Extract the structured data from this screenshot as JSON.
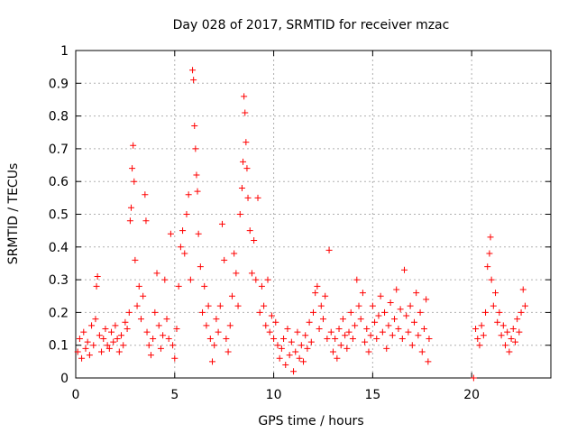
{
  "colors": {
    "marker": "#ff0000",
    "axis": "#000000",
    "grid": "#b0b0b0"
  },
  "chart_data": {
    "type": "scatter",
    "title": "Day 028 of 2017, SRMTID for receiver mzac",
    "xlabel": "GPS time / hours",
    "ylabel": "SRMTID / TECUs",
    "xlim": [
      0,
      24
    ],
    "ylim": [
      0,
      1
    ],
    "xticks": [
      0,
      5,
      10,
      15,
      20
    ],
    "yticks": [
      0,
      0.1,
      0.2,
      0.3,
      0.4,
      0.5,
      0.6,
      0.7,
      0.8,
      0.9,
      1
    ],
    "grid": true,
    "marker": "plus",
    "series": [
      {
        "name": "mzac",
        "points": [
          [
            0.1,
            0.08
          ],
          [
            0.2,
            0.12
          ],
          [
            0.3,
            0.06
          ],
          [
            0.4,
            0.14
          ],
          [
            0.5,
            0.09
          ],
          [
            0.6,
            0.11
          ],
          [
            0.7,
            0.07
          ],
          [
            0.8,
            0.16
          ],
          [
            0.9,
            0.1
          ],
          [
            1.0,
            0.18
          ],
          [
            1.05,
            0.28
          ],
          [
            1.1,
            0.31
          ],
          [
            1.2,
            0.13
          ],
          [
            1.3,
            0.08
          ],
          [
            1.4,
            0.12
          ],
          [
            1.5,
            0.15
          ],
          [
            1.6,
            0.1
          ],
          [
            1.7,
            0.09
          ],
          [
            1.8,
            0.14
          ],
          [
            1.9,
            0.11
          ],
          [
            2.0,
            0.16
          ],
          [
            2.1,
            0.12
          ],
          [
            2.2,
            0.08
          ],
          [
            2.3,
            0.13
          ],
          [
            2.4,
            0.1
          ],
          [
            2.5,
            0.17
          ],
          [
            2.6,
            0.15
          ],
          [
            2.7,
            0.2
          ],
          [
            2.75,
            0.48
          ],
          [
            2.8,
            0.52
          ],
          [
            2.85,
            0.64
          ],
          [
            2.9,
            0.71
          ],
          [
            2.95,
            0.6
          ],
          [
            3.0,
            0.36
          ],
          [
            3.1,
            0.22
          ],
          [
            3.2,
            0.28
          ],
          [
            3.3,
            0.18
          ],
          [
            3.4,
            0.25
          ],
          [
            3.5,
            0.56
          ],
          [
            3.55,
            0.48
          ],
          [
            3.6,
            0.14
          ],
          [
            3.7,
            0.1
          ],
          [
            3.8,
            0.07
          ],
          [
            3.9,
            0.12
          ],
          [
            4.0,
            0.2
          ],
          [
            4.1,
            0.32
          ],
          [
            4.2,
            0.16
          ],
          [
            4.3,
            0.09
          ],
          [
            4.4,
            0.13
          ],
          [
            4.5,
            0.3
          ],
          [
            4.6,
            0.18
          ],
          [
            4.7,
            0.12
          ],
          [
            4.8,
            0.44
          ],
          [
            4.9,
            0.1
          ],
          [
            5.0,
            0.06
          ],
          [
            5.1,
            0.15
          ],
          [
            5.2,
            0.28
          ],
          [
            5.3,
            0.4
          ],
          [
            5.4,
            0.45
          ],
          [
            5.5,
            0.38
          ],
          [
            5.6,
            0.5
          ],
          [
            5.7,
            0.56
          ],
          [
            5.8,
            0.3
          ],
          [
            5.9,
            0.94
          ],
          [
            5.95,
            0.91
          ],
          [
            6.0,
            0.77
          ],
          [
            6.05,
            0.7
          ],
          [
            6.1,
            0.62
          ],
          [
            6.15,
            0.57
          ],
          [
            6.2,
            0.44
          ],
          [
            6.3,
            0.34
          ],
          [
            6.4,
            0.2
          ],
          [
            6.5,
            0.28
          ],
          [
            6.6,
            0.16
          ],
          [
            6.7,
            0.22
          ],
          [
            6.8,
            0.12
          ],
          [
            6.9,
            0.05
          ],
          [
            7.0,
            0.1
          ],
          [
            7.1,
            0.18
          ],
          [
            7.2,
            0.14
          ],
          [
            7.3,
            0.22
          ],
          [
            7.4,
            0.47
          ],
          [
            7.5,
            0.36
          ],
          [
            7.6,
            0.12
          ],
          [
            7.7,
            0.08
          ],
          [
            7.8,
            0.16
          ],
          [
            7.9,
            0.25
          ],
          [
            8.0,
            0.38
          ],
          [
            8.1,
            0.32
          ],
          [
            8.2,
            0.22
          ],
          [
            8.3,
            0.5
          ],
          [
            8.4,
            0.58
          ],
          [
            8.45,
            0.66
          ],
          [
            8.5,
            0.86
          ],
          [
            8.55,
            0.81
          ],
          [
            8.6,
            0.72
          ],
          [
            8.65,
            0.64
          ],
          [
            8.7,
            0.55
          ],
          [
            8.8,
            0.45
          ],
          [
            8.9,
            0.32
          ],
          [
            9.0,
            0.42
          ],
          [
            9.1,
            0.3
          ],
          [
            9.2,
            0.55
          ],
          [
            9.3,
            0.2
          ],
          [
            9.4,
            0.28
          ],
          [
            9.5,
            0.22
          ],
          [
            9.6,
            0.16
          ],
          [
            9.7,
            0.3
          ],
          [
            9.8,
            0.14
          ],
          [
            9.9,
            0.19
          ],
          [
            10.0,
            0.12
          ],
          [
            10.1,
            0.17
          ],
          [
            10.2,
            0.1
          ],
          [
            10.3,
            0.06
          ],
          [
            10.4,
            0.09
          ],
          [
            10.5,
            0.12
          ],
          [
            10.6,
            0.04
          ],
          [
            10.7,
            0.15
          ],
          [
            10.8,
            0.07
          ],
          [
            10.9,
            0.11
          ],
          [
            11.0,
            0.02
          ],
          [
            11.1,
            0.08
          ],
          [
            11.2,
            0.14
          ],
          [
            11.3,
            0.06
          ],
          [
            11.4,
            0.1
          ],
          [
            11.5,
            0.05
          ],
          [
            11.6,
            0.13
          ],
          [
            11.7,
            0.09
          ],
          [
            11.8,
            0.17
          ],
          [
            11.9,
            0.11
          ],
          [
            12.0,
            0.2
          ],
          [
            12.1,
            0.26
          ],
          [
            12.2,
            0.28
          ],
          [
            12.3,
            0.15
          ],
          [
            12.4,
            0.22
          ],
          [
            12.5,
            0.18
          ],
          [
            12.6,
            0.25
          ],
          [
            12.7,
            0.12
          ],
          [
            12.8,
            0.39
          ],
          [
            12.9,
            0.14
          ],
          [
            13.0,
            0.08
          ],
          [
            13.1,
            0.12
          ],
          [
            13.2,
            0.06
          ],
          [
            13.3,
            0.15
          ],
          [
            13.4,
            0.1
          ],
          [
            13.5,
            0.18
          ],
          [
            13.6,
            0.13
          ],
          [
            13.7,
            0.09
          ],
          [
            13.8,
            0.14
          ],
          [
            13.9,
            0.2
          ],
          [
            14.0,
            0.12
          ],
          [
            14.1,
            0.16
          ],
          [
            14.2,
            0.3
          ],
          [
            14.3,
            0.22
          ],
          [
            14.4,
            0.18
          ],
          [
            14.5,
            0.26
          ],
          [
            14.6,
            0.11
          ],
          [
            14.7,
            0.15
          ],
          [
            14.8,
            0.08
          ],
          [
            14.9,
            0.13
          ],
          [
            15.0,
            0.22
          ],
          [
            15.1,
            0.17
          ],
          [
            15.2,
            0.12
          ],
          [
            15.3,
            0.19
          ],
          [
            15.4,
            0.25
          ],
          [
            15.5,
            0.14
          ],
          [
            15.6,
            0.2
          ],
          [
            15.7,
            0.09
          ],
          [
            15.8,
            0.16
          ],
          [
            15.9,
            0.23
          ],
          [
            16.0,
            0.13
          ],
          [
            16.1,
            0.18
          ],
          [
            16.2,
            0.27
          ],
          [
            16.3,
            0.15
          ],
          [
            16.4,
            0.21
          ],
          [
            16.5,
            0.12
          ],
          [
            16.6,
            0.33
          ],
          [
            16.7,
            0.19
          ],
          [
            16.8,
            0.14
          ],
          [
            16.9,
            0.22
          ],
          [
            17.0,
            0.1
          ],
          [
            17.1,
            0.17
          ],
          [
            17.2,
            0.26
          ],
          [
            17.3,
            0.13
          ],
          [
            17.4,
            0.2
          ],
          [
            17.5,
            0.08
          ],
          [
            17.6,
            0.15
          ],
          [
            17.7,
            0.24
          ],
          [
            17.8,
            0.05
          ],
          [
            17.85,
            0.12
          ],
          [
            20.1,
            0.0
          ],
          [
            20.2,
            0.15
          ],
          [
            20.3,
            0.12
          ],
          [
            20.4,
            0.1
          ],
          [
            20.5,
            0.16
          ],
          [
            20.6,
            0.13
          ],
          [
            20.7,
            0.2
          ],
          [
            20.8,
            0.34
          ],
          [
            20.9,
            0.38
          ],
          [
            20.95,
            0.43
          ],
          [
            21.0,
            0.3
          ],
          [
            21.1,
            0.22
          ],
          [
            21.2,
            0.26
          ],
          [
            21.3,
            0.17
          ],
          [
            21.4,
            0.2
          ],
          [
            21.5,
            0.13
          ],
          [
            21.6,
            0.16
          ],
          [
            21.7,
            0.1
          ],
          [
            21.8,
            0.14
          ],
          [
            21.9,
            0.08
          ],
          [
            22.0,
            0.12
          ],
          [
            22.1,
            0.15
          ],
          [
            22.2,
            0.11
          ],
          [
            22.3,
            0.18
          ],
          [
            22.4,
            0.14
          ],
          [
            22.5,
            0.2
          ],
          [
            22.6,
            0.27
          ],
          [
            22.7,
            0.22
          ]
        ]
      }
    ]
  }
}
